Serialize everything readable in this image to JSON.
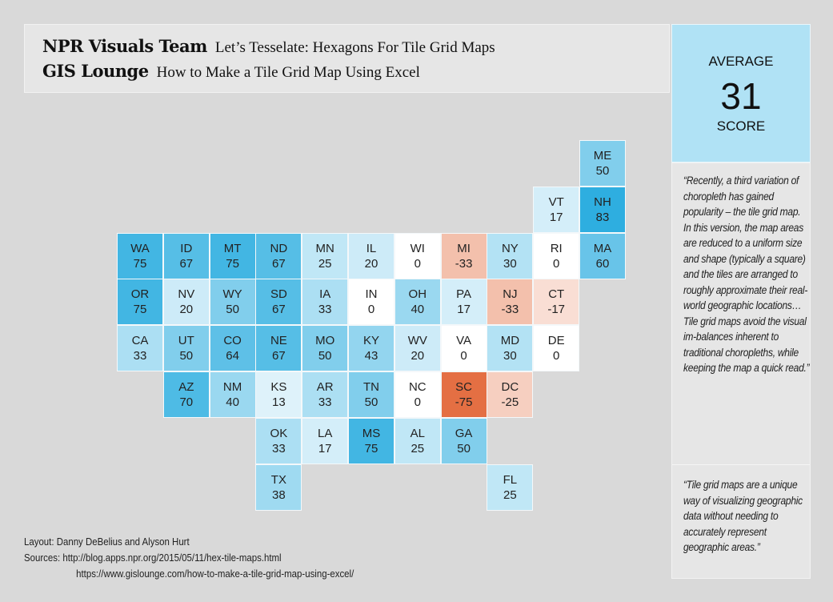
{
  "header": {
    "lines": [
      {
        "source": "NPR Visuals Team",
        "title": "Let’s Tesselate: Hexagons For Tile Grid Maps"
      },
      {
        "source": "GIS Lounge",
        "title": "How to Make a Tile Grid Map Using Excel"
      }
    ]
  },
  "average": {
    "top_label": "AVERAGE",
    "value": "31",
    "bottom_label": "SCORE"
  },
  "quotes": [
    "“Recently, a third variation of choropleth has gained popularity – the tile grid map. In this version, the map areas are reduced to a uniform size and shape (typically a square) and the tiles are arranged to roughly approximate their real-world geographic locations…Tile grid maps avoid the visual im-balances inherent to traditional choropleths, while keeping the map a quick read.”",
    "“Tile grid maps are a unique way of visualizing geographic data without needing to accurately represent geographic areas.”"
  ],
  "credits": {
    "layout": "Layout: Danny DeBelius and Alyson Hurt",
    "sources_label": "Sources:",
    "source1": "http://blog.apps.npr.org/2015/05/11/hex-tile-maps.html",
    "source2": "https://www.gislounge.com/how-to-make-a-tile-grid-map-using-excel/"
  },
  "colors": {
    "positive_max": "#26abdf",
    "zero": "#ffffff",
    "negative_max": "#e46f43"
  },
  "map_data": {
    "type": "tile-grid choropleth",
    "states": [
      {
        "abbr": "ME",
        "value": 50
      },
      {
        "abbr": "VT",
        "value": 17
      },
      {
        "abbr": "NH",
        "value": 83
      },
      {
        "abbr": "WA",
        "value": 75
      },
      {
        "abbr": "ID",
        "value": 67
      },
      {
        "abbr": "MT",
        "value": 75
      },
      {
        "abbr": "ND",
        "value": 67
      },
      {
        "abbr": "MN",
        "value": 25
      },
      {
        "abbr": "IL",
        "value": 20
      },
      {
        "abbr": "WI",
        "value": 0
      },
      {
        "abbr": "MI",
        "value": -33
      },
      {
        "abbr": "NY",
        "value": 30
      },
      {
        "abbr": "RI",
        "value": 0
      },
      {
        "abbr": "MA",
        "value": 60
      },
      {
        "abbr": "OR",
        "value": 75
      },
      {
        "abbr": "NV",
        "value": 20
      },
      {
        "abbr": "WY",
        "value": 50
      },
      {
        "abbr": "SD",
        "value": 67
      },
      {
        "abbr": "IA",
        "value": 33
      },
      {
        "abbr": "IN",
        "value": 0
      },
      {
        "abbr": "OH",
        "value": 40
      },
      {
        "abbr": "PA",
        "value": 17
      },
      {
        "abbr": "NJ",
        "value": -33
      },
      {
        "abbr": "CT",
        "value": -17
      },
      {
        "abbr": "CA",
        "value": 33
      },
      {
        "abbr": "UT",
        "value": 50
      },
      {
        "abbr": "CO",
        "value": 64
      },
      {
        "abbr": "NE",
        "value": 67
      },
      {
        "abbr": "MO",
        "value": 50
      },
      {
        "abbr": "KY",
        "value": 43
      },
      {
        "abbr": "WV",
        "value": 20
      },
      {
        "abbr": "VA",
        "value": 0
      },
      {
        "abbr": "MD",
        "value": 30
      },
      {
        "abbr": "DE",
        "value": 0
      },
      {
        "abbr": "AZ",
        "value": 70
      },
      {
        "abbr": "NM",
        "value": 40
      },
      {
        "abbr": "KS",
        "value": 13
      },
      {
        "abbr": "AR",
        "value": 33
      },
      {
        "abbr": "TN",
        "value": 50
      },
      {
        "abbr": "NC",
        "value": 0
      },
      {
        "abbr": "SC",
        "value": -75
      },
      {
        "abbr": "DC",
        "value": -25
      },
      {
        "abbr": "OK",
        "value": 33
      },
      {
        "abbr": "LA",
        "value": 17
      },
      {
        "abbr": "MS",
        "value": 75
      },
      {
        "abbr": "AL",
        "value": 25
      },
      {
        "abbr": "GA",
        "value": 50
      },
      {
        "abbr": "TX",
        "value": 38
      },
      {
        "abbr": "FL",
        "value": 25
      }
    ]
  }
}
